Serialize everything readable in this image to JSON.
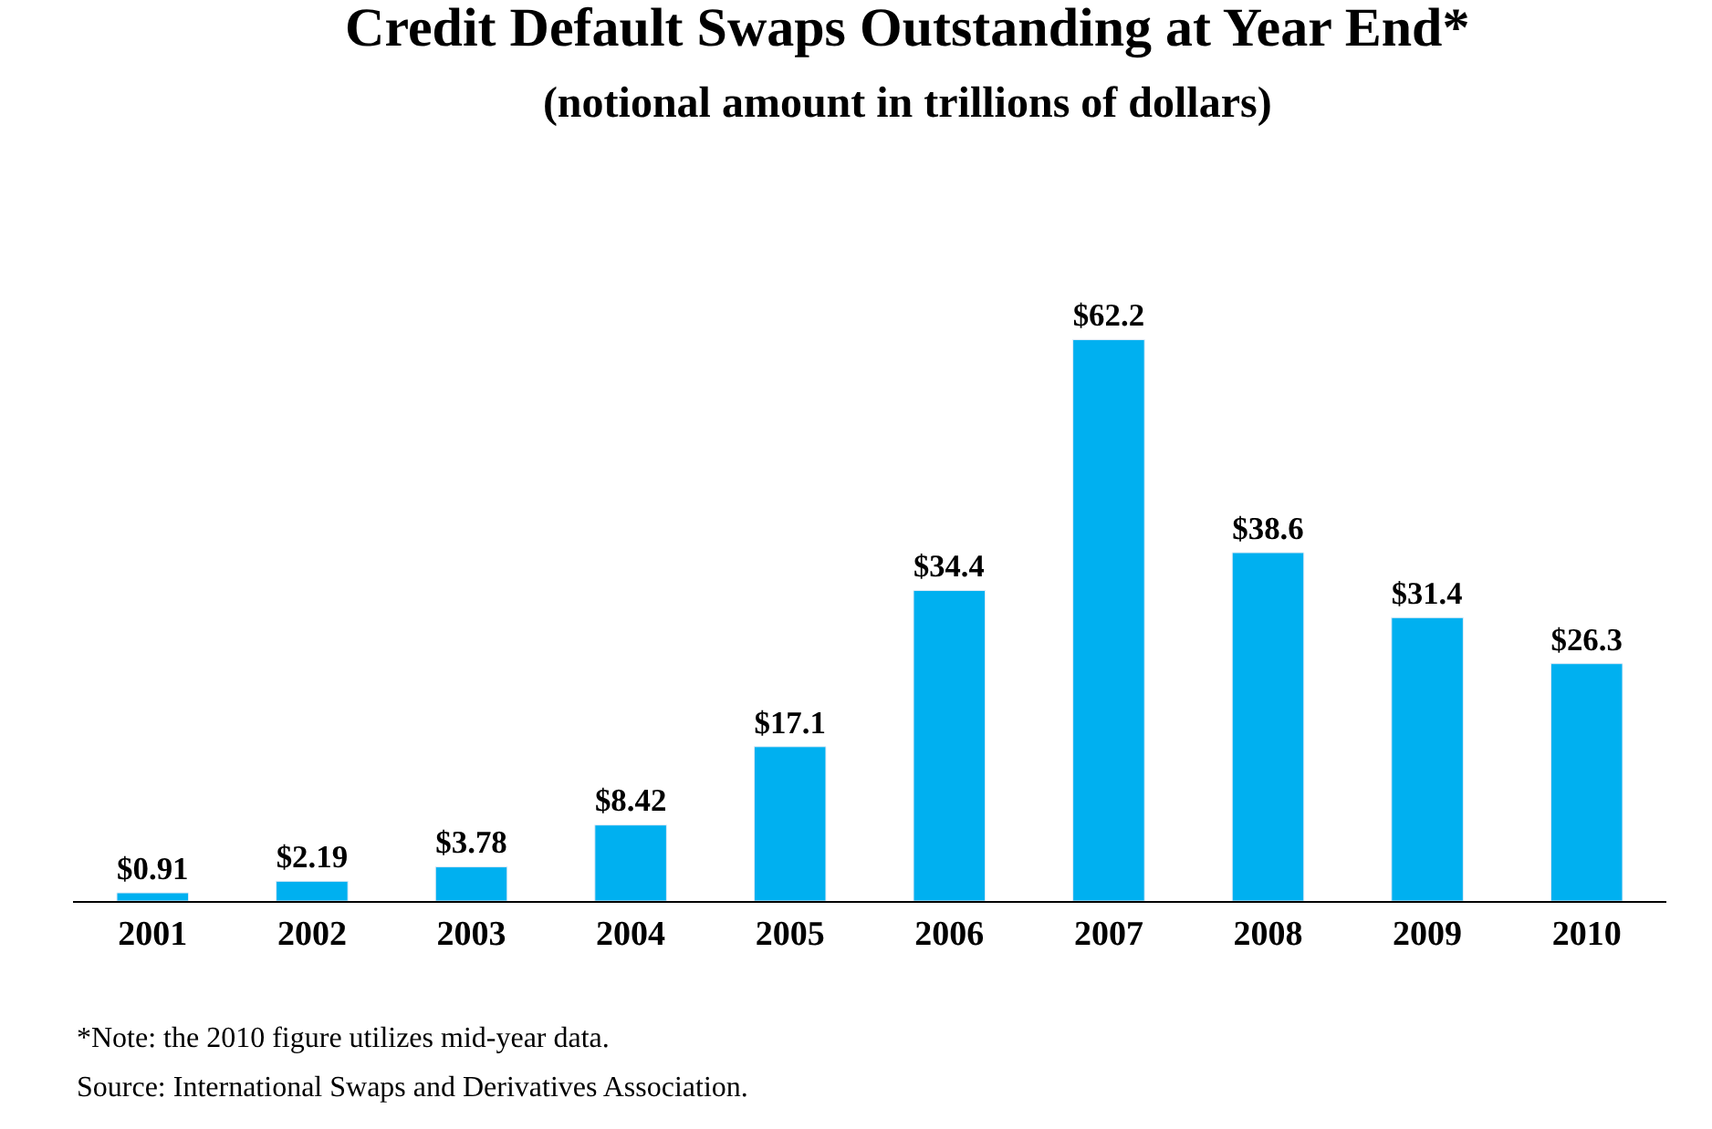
{
  "chart_data": {
    "type": "bar",
    "title": "Credit Default Swaps Outstanding at Year End*",
    "subtitle": "(notional amount in trillions of dollars)",
    "categories": [
      "2001",
      "2002",
      "2003",
      "2004",
      "2005",
      "2006",
      "2007",
      "2008",
      "2009",
      "2010"
    ],
    "values": [
      0.91,
      2.19,
      3.78,
      8.42,
      17.1,
      34.4,
      62.2,
      38.6,
      31.4,
      26.3
    ],
    "value_labels": [
      "$0.91",
      "$2.19",
      "$3.78",
      "$8.42",
      "$17.1",
      "$34.4",
      "$62.2",
      "$38.6",
      "$31.4",
      "$26.3"
    ],
    "color": "#00b0f0",
    "tick_labels": "x",
    "annotations": [
      "*Note: the 2010 figure utilizes mid-year data.",
      "Source: International Swaps and Derivatives Association."
    ]
  }
}
